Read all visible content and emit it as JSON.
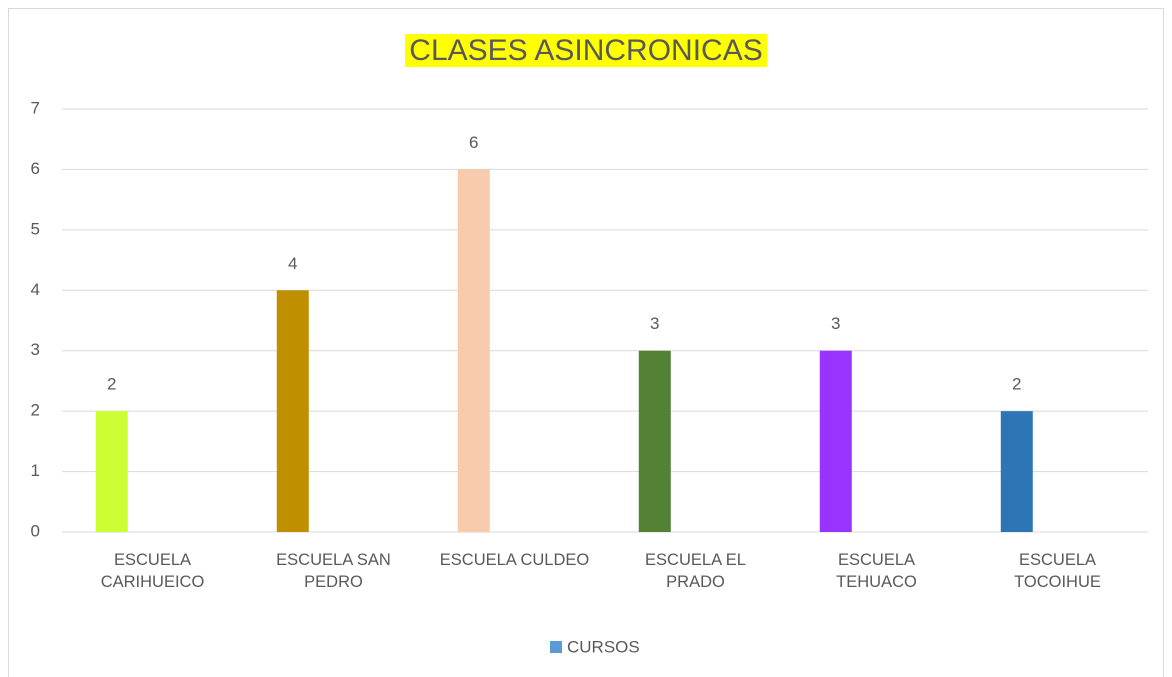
{
  "chart_data": {
    "type": "bar",
    "title": "CLASES ASINCRONICAS",
    "categories": [
      "ESCUELA CARIHUEICO",
      "ESCUELA SAN PEDRO",
      "ESCUELA CULDEO",
      "ESCUELA EL PRADO",
      "ESCUELA TEHUACO",
      "ESCUELA TOCOIHUE"
    ],
    "series": [
      {
        "name": "CURSOS",
        "color": "#5b9bd5",
        "values": [
          2,
          4,
          6,
          3,
          3,
          2
        ],
        "colors": [
          "#ccff33",
          "#bf8f00",
          "#f8cbad",
          "#548235",
          "#9933ff",
          "#2e75b6"
        ]
      }
    ],
    "ylim": [
      0,
      7
    ],
    "yticks": [
      0,
      1,
      2,
      3,
      4,
      5,
      6,
      7
    ],
    "grid": true,
    "legend": "bottom"
  }
}
